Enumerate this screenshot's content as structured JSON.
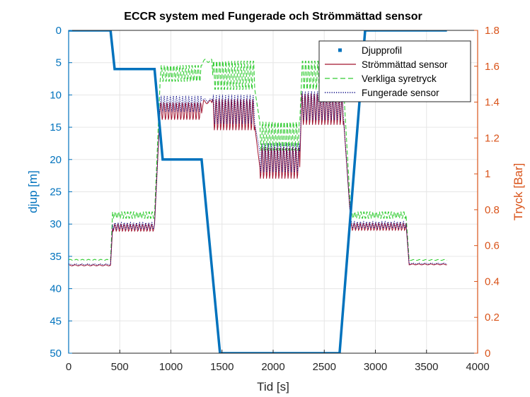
{
  "chart_data": {
    "type": "line",
    "title": "ECCR system med Fungerade och Strömmättad sensor",
    "xlabel": "Tid [s]",
    "ylabel_left": "djup [m]",
    "ylabel_right": "Tryck [Bar]",
    "xlim": [
      0,
      4000
    ],
    "ylim_left": [
      0,
      50
    ],
    "ylim_left_reversed": true,
    "ylim_right": [
      0,
      1.8
    ],
    "grid": true,
    "legend_position": "top-right",
    "x_ticks": [
      "0",
      "500",
      "1000",
      "1500",
      "2000",
      "2500",
      "3000",
      "3500",
      "4000"
    ],
    "y_left_ticks": [
      "0",
      "5",
      "10",
      "15",
      "20",
      "25",
      "30",
      "35",
      "40",
      "45",
      "50"
    ],
    "y_right_ticks": [
      "0",
      "0.2",
      "0.4",
      "0.6",
      "0.8",
      "1",
      "1.2",
      "1.4",
      "1.6",
      "1.8"
    ],
    "colors": {
      "left_axis": "#0072BD",
      "right_axis": "#D95319",
      "grid": "#e6e6e6"
    },
    "depth_profile": {
      "name": "Djupprofil",
      "axis": "left",
      "color": "#0072BD",
      "x": [
        0,
        410,
        450,
        840,
        920,
        1300,
        1480,
        2650,
        2900,
        3320,
        3700
      ],
      "y": [
        0,
        0,
        6,
        6,
        20,
        20,
        50,
        50,
        0,
        0,
        0
      ]
    },
    "pressure_segments": [
      {
        "x0": 0,
        "x1": 410,
        "green": 0.52,
        "red": 0.49,
        "blue": 0.495,
        "amp": 0.01,
        "ripple": false
      },
      {
        "x0": 430,
        "x1": 840,
        "green": 0.77,
        "red": 0.7,
        "blue": 0.71,
        "amp": 0.02,
        "ripple": true
      },
      {
        "x0": 895,
        "x1": 1300,
        "green": 1.56,
        "red": 1.35,
        "blue": 1.39,
        "amp": 0.05,
        "ripple": true
      },
      {
        "x0": 1320,
        "x1": 1400,
        "green": 1.63,
        "red": 1.4,
        "blue": 1.41,
        "amp": 0.03,
        "ripple": false
      },
      {
        "x0": 1410,
        "x1": 1820,
        "green": 1.55,
        "red": 1.33,
        "blue": 1.36,
        "amp": 0.09,
        "ripple": true
      },
      {
        "x0": 1870,
        "x1": 2260,
        "green": 1.21,
        "red": 1.06,
        "blue": 1.09,
        "amp": 0.09,
        "ripple": true
      },
      {
        "x0": 2280,
        "x1": 2690,
        "green": 1.55,
        "red": 1.36,
        "blue": 1.38,
        "amp": 0.09,
        "ripple": true
      },
      {
        "x0": 2760,
        "x1": 3300,
        "green": 0.77,
        "red": 0.705,
        "blue": 0.715,
        "amp": 0.02,
        "ripple": true
      },
      {
        "x0": 3330,
        "x1": 3700,
        "green": 0.52,
        "red": 0.495,
        "blue": 0.5,
        "amp": 0.008,
        "ripple": false
      }
    ],
    "series": [
      {
        "name": "Djupprofil",
        "axis": "left",
        "color": "#0072BD",
        "style": "square-marker"
      },
      {
        "name": "Strömmättad sensor",
        "axis": "right",
        "color": "#A2142F",
        "style": "solid"
      },
      {
        "name": "Verkliga syretryck",
        "axis": "right",
        "color": "#33CC33",
        "style": "dashed"
      },
      {
        "name": "Fungerade sensor",
        "axis": "right",
        "color": "#000080",
        "style": "dotted"
      }
    ]
  }
}
